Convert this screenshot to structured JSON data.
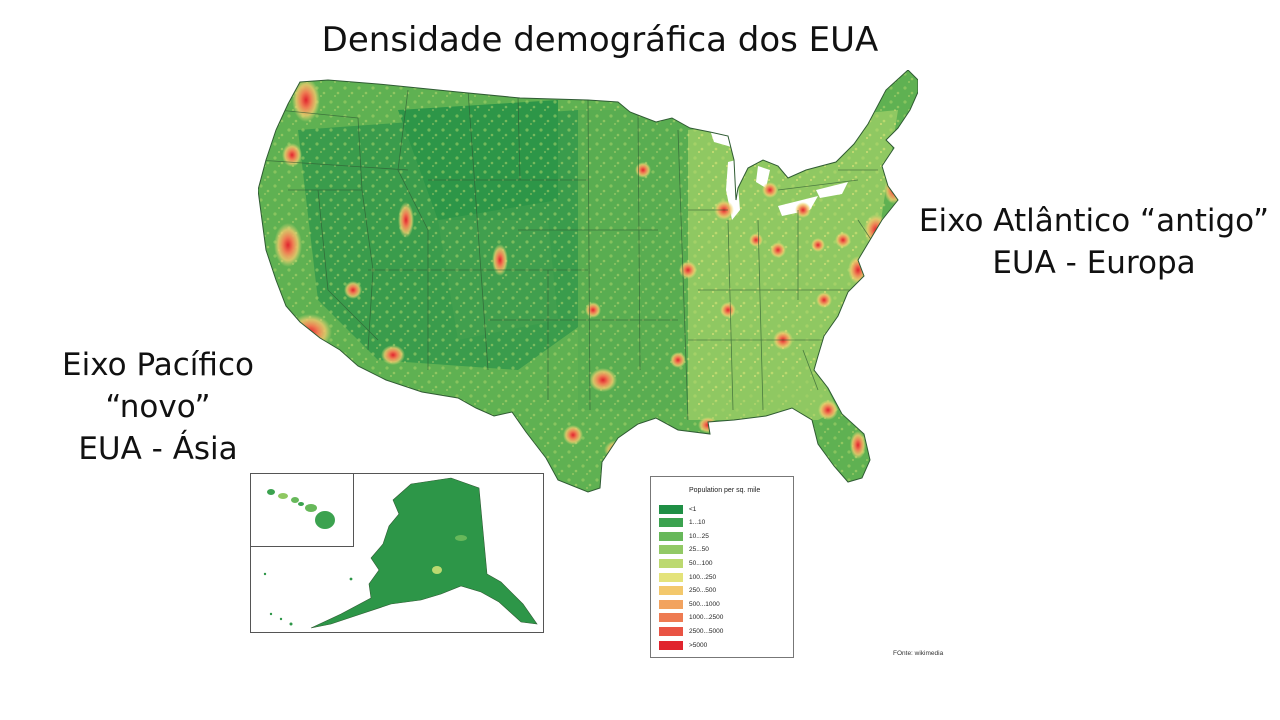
{
  "title": "Densidade demográfica dos EUA",
  "annotations": {
    "pacific_line1": "Eixo Pacífico “novo”",
    "pacific_line2": "EUA - Ásia",
    "atlantic_line1": "Eixo Atlântico “antigo”",
    "atlantic_line2": "EUA - Europa"
  },
  "legend": {
    "title": "Population per sq. mile",
    "items": [
      {
        "label": "<1",
        "color": "#1f8f45"
      },
      {
        "label": "1...10",
        "color": "#3ba24f"
      },
      {
        "label": "10...25",
        "color": "#67b85a"
      },
      {
        "label": "25...50",
        "color": "#92c965"
      },
      {
        "label": "50...100",
        "color": "#bcd970"
      },
      {
        "label": "100...250",
        "color": "#e4e37a"
      },
      {
        "label": "250...500",
        "color": "#f3c86c"
      },
      {
        "label": "500...1000",
        "color": "#f2a35f"
      },
      {
        "label": "1000...2500",
        "color": "#ee7b52"
      },
      {
        "label": "2500...5000",
        "color": "#e95444"
      },
      {
        "label": ">5000",
        "color": "#e0242e"
      }
    ]
  },
  "source": "FOnte: wikimedia",
  "colors": {
    "land_base": "#5fb152",
    "land_dark": "#2d9648",
    "land_light": "#a9d468",
    "urban": "#e0242e",
    "urban_glow": "#f0b055",
    "border": "#2f5b33"
  }
}
